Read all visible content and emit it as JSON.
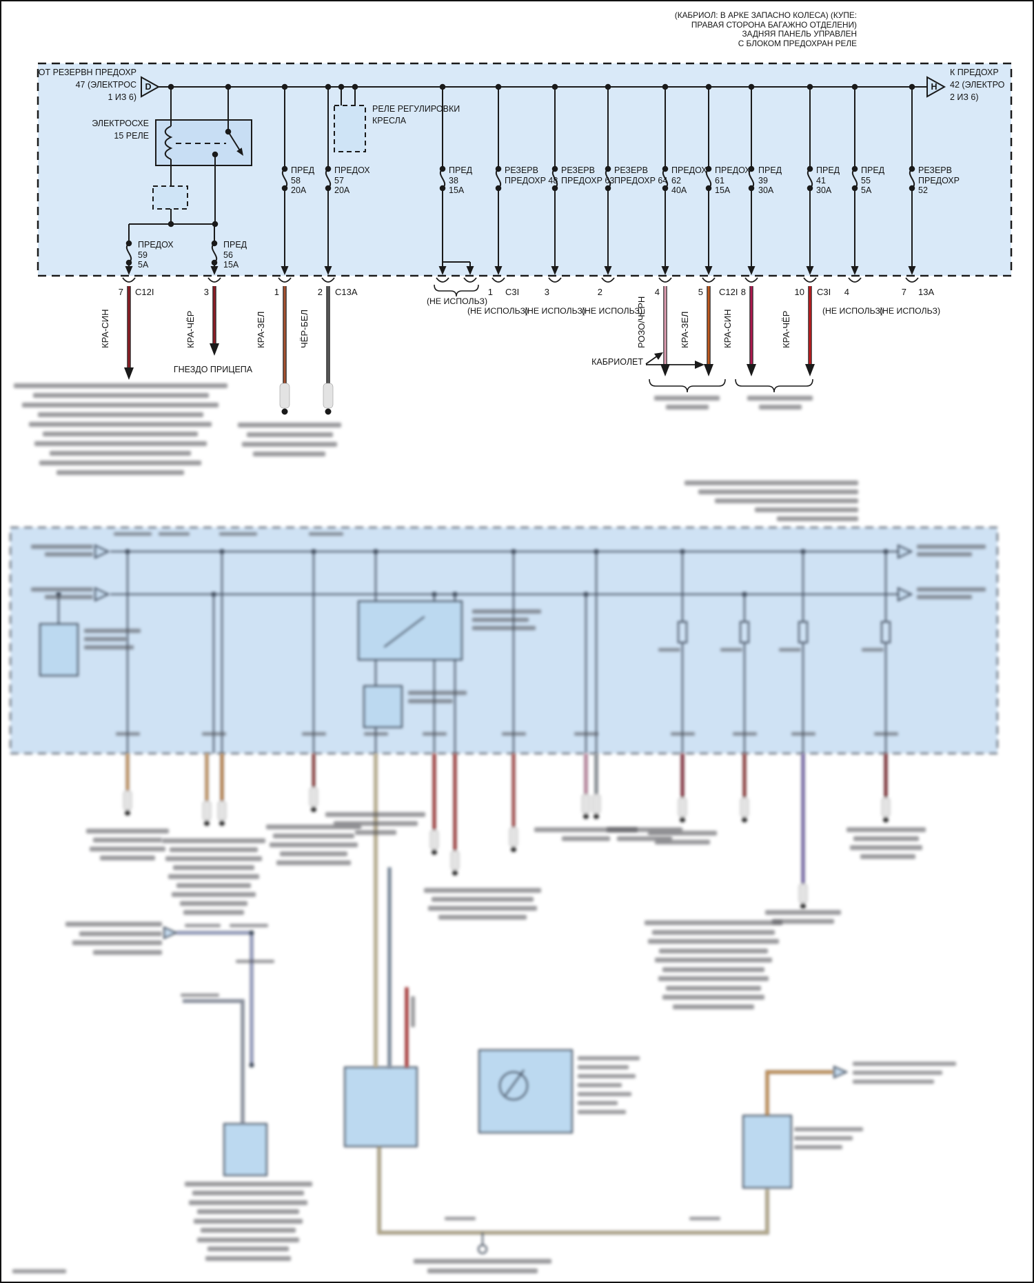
{
  "doc": {
    "header_lines": [
      "(КАБРИОЛ: В АРКЕ ЗАПАСНО КОЛЕСА) (КУПЕ:",
      "ПРАВАЯ СТОРОНА БАГАЖНО ОТДЕЛЕНИ)",
      "ЗАДНЯЯ ПАНЕЛЬ УПРАВЛЕН",
      "С БЛОКОМ ПРЕДОХРАН РЕЛЕ"
    ]
  },
  "fuse_panel": {
    "entry": {
      "letter": "D",
      "lines": [
        "ОТ РЕЗЕРВН ПРЕДОХР",
        "47 (ЭЛЕКТРОС",
        "1 ИЗ 6)"
      ]
    },
    "exit": {
      "letter": "H",
      "lines": [
        "К ПРЕДОХР",
        "42 (ЭЛЕКТРО",
        "2 ИЗ 6)"
      ]
    },
    "relay": {
      "lines": [
        "ЭЛЕКТРОСХЕ",
        "15 РЕЛЕ"
      ]
    },
    "seat_relay": {
      "lines": [
        "РЕЛЕ РЕГУЛИРОВКИ",
        "КРЕСЛА"
      ]
    },
    "fuses": [
      {
        "id": "58",
        "lines": [
          "ПРЕД",
          "58",
          "20А"
        ]
      },
      {
        "id": "57",
        "lines": [
          "ПРЕДОХ",
          "57",
          "20А"
        ]
      },
      {
        "id": "38",
        "lines": [
          "ПРЕД",
          "38",
          "15А"
        ]
      },
      {
        "id": "48",
        "lines": [
          "РЕЗЕРВ",
          "ПРЕДОХР 48"
        ]
      },
      {
        "id": "63",
        "lines": [
          "РЕЗЕРВ",
          "ПРЕДОХР 63"
        ]
      },
      {
        "id": "64",
        "lines": [
          "РЕЗЕРВ",
          "ПРЕДОХР 64"
        ]
      },
      {
        "id": "62",
        "lines": [
          "ПРЕДОХ",
          "62",
          "40А"
        ]
      },
      {
        "id": "61",
        "lines": [
          "ПРЕДОХ",
          "61",
          "15А"
        ]
      },
      {
        "id": "39",
        "lines": [
          "ПРЕД",
          "39",
          "30А"
        ]
      },
      {
        "id": "41",
        "lines": [
          "ПРЕД",
          "41",
          "30А"
        ]
      },
      {
        "id": "55",
        "lines": [
          "ПРЕД",
          "55",
          "5А"
        ]
      },
      {
        "id": "52",
        "lines": [
          "РЕЗЕРВ",
          "ПРЕДОХР",
          "52"
        ]
      },
      {
        "id": "59",
        "lines": [
          "ПРЕДОХ",
          "59",
          "5А"
        ]
      },
      {
        "id": "56",
        "lines": [
          "ПРЕД",
          "56",
          "15А"
        ]
      }
    ],
    "pins": [
      {
        "num": "7",
        "conn": "C12I"
      },
      {
        "num": "3",
        "conn": ""
      },
      {
        "num": "1",
        "conn": ""
      },
      {
        "num": "2",
        "conn": "C13A"
      },
      {
        "num": "1",
        "conn": "C3I"
      },
      {
        "num": "3",
        "conn": ""
      },
      {
        "num": "2",
        "conn": ""
      },
      {
        "num": "4",
        "conn": ""
      },
      {
        "num": "5",
        "conn": "C12I"
      },
      {
        "num": "8",
        "conn": ""
      },
      {
        "num": "10",
        "conn": "C3I"
      },
      {
        "num": "4",
        "conn": ""
      },
      {
        "num": "7",
        "conn": "13A"
      }
    ],
    "wire_labels": [
      "КРА-СИН",
      "КРА-ЧЁР",
      "КРА-ЗЕЛ",
      "ЧЁР-БЕЛ",
      "РОЗО/ЧЕРН",
      "КРА-ЗЕЛ",
      "КРА-СИН",
      "КРА-ЧЁР"
    ],
    "not_used_label": "(НЕ ИСПОЛЬЗ)",
    "trailer_socket_label": "ГНЕЗДО ПРИЦЕПА",
    "convertible_label": "КАБРИОЛЕТ"
  },
  "colors": {
    "panel_fill": "#d9e9f8",
    "relay_fill": "#c8def4",
    "small_box_fill": "#cfe4f6",
    "wire_kra_sin": "#8e1c24",
    "wire_kra_chyor": "#8e1c24",
    "wire_kra_zel": "#a85230",
    "wire_chyor_bel": "#5a5a5a",
    "wire_rozo_chern": "#e2a0b4",
    "wire_kra_zel_2": "#c2591e",
    "wire_kra_sin_2": "#b01950",
    "wire_kra_chyor_2": "#c41a1e"
  }
}
